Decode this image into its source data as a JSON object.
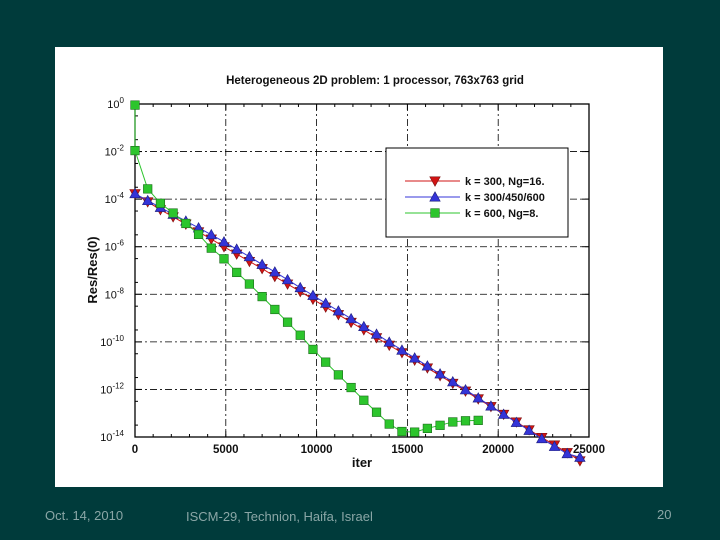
{
  "footer": {
    "date": "Oct. 14, 2010",
    "venue": "ISCM-29, Technion, Haifa, Israel",
    "page": "20"
  },
  "colors": {
    "background": "#003b3b",
    "figure": "#ffffff",
    "footer_text": "#8aa6a6"
  },
  "chart_data": {
    "type": "line",
    "title": "Heterogeneous 2D problem:  1 processor, 763x763 grid",
    "xlabel": "iter",
    "ylabel": "Res/Res(0)",
    "xlim": [
      0,
      25000
    ],
    "ylim_log10": [
      -14,
      0
    ],
    "yscale": "log",
    "grid": true,
    "legend_position": "top-right",
    "x_ticks": [
      "0",
      "5000",
      "10000",
      "15000",
      "20000",
      "25000"
    ],
    "y_ticks": [
      {
        "base": "10",
        "exp": "0"
      },
      {
        "base": "10",
        "exp": "-2"
      },
      {
        "base": "10",
        "exp": "-4"
      },
      {
        "base": "10",
        "exp": "-6"
      },
      {
        "base": "10",
        "exp": "-8"
      },
      {
        "base": "10",
        "exp": "-10"
      },
      {
        "base": "10",
        "exp": "-12"
      },
      {
        "base": "10",
        "exp": "-14"
      }
    ],
    "series": [
      {
        "name": "k = 300,  Ng=16.",
        "color": "#d21414",
        "marker": "triangle-down",
        "points": [
          [
            0,
            0.00017
          ],
          [
            700,
            7.7e-05
          ],
          [
            1400,
            3.6e-05
          ],
          [
            2100,
            1.8e-05
          ],
          [
            2800,
            8.9e-06
          ],
          [
            3500,
            4.2e-06
          ],
          [
            4200,
            2.1e-06
          ],
          [
            4900,
            9.9e-07
          ],
          [
            5600,
            4.9e-07
          ],
          [
            6300,
            2.4e-07
          ],
          [
            7000,
            1.2e-07
          ],
          [
            7700,
            5.6e-08
          ],
          [
            8400,
            2.7e-08
          ],
          [
            9100,
            1.3e-08
          ],
          [
            9800,
            6.2e-09
          ],
          [
            10500,
            2.9e-09
          ],
          [
            11200,
            1.4e-09
          ],
          [
            11900,
            6.6e-10
          ],
          [
            12600,
            3.2e-10
          ],
          [
            13300,
            1.5e-10
          ],
          [
            14000,
            7.2e-11
          ],
          [
            14700,
            3.5e-11
          ],
          [
            15400,
            1.7e-11
          ],
          [
            16100,
            8e-12
          ],
          [
            16800,
            3.8e-12
          ],
          [
            17500,
            1.8e-12
          ],
          [
            18200,
            8.5e-13
          ],
          [
            18900,
            4e-13
          ],
          [
            19600,
            1.9e-13
          ],
          [
            20300,
            9e-14
          ],
          [
            21000,
            4.3e-14
          ],
          [
            21700,
            2e-14
          ],
          [
            22400,
            9.6e-15
          ],
          [
            23100,
            4.6e-15
          ],
          [
            23800,
            2.2e-15
          ],
          [
            24500,
            1e-15
          ]
        ]
      },
      {
        "name": "k = 300/450/600",
        "color": "#3434d8",
        "marker": "triangle-up",
        "points": [
          [
            0,
            0.00017
          ],
          [
            700,
            8.7e-05
          ],
          [
            1400,
            4.5e-05
          ],
          [
            2100,
            2.3e-05
          ],
          [
            2800,
            1.2e-05
          ],
          [
            3500,
            6.2e-06
          ],
          [
            4200,
            3.2e-06
          ],
          [
            4900,
            1.6e-06
          ],
          [
            5600,
            7.9e-07
          ],
          [
            6300,
            3.8e-07
          ],
          [
            7000,
            1.8e-07
          ],
          [
            7700,
            8.7e-08
          ],
          [
            8400,
            4.1e-08
          ],
          [
            9100,
            1.9e-08
          ],
          [
            9800,
            9e-09
          ],
          [
            10500,
            4.2e-09
          ],
          [
            11200,
            2e-09
          ],
          [
            11900,
            9.4e-10
          ],
          [
            12600,
            4.4e-10
          ],
          [
            13300,
            2.1e-10
          ],
          [
            14000,
            9.7e-11
          ],
          [
            14700,
            4.5e-11
          ],
          [
            15400,
            2.1e-11
          ],
          [
            16100,
            9.7e-12
          ],
          [
            16800,
            4.5e-12
          ],
          [
            17500,
            2.1e-12
          ],
          [
            18200,
            9.6e-13
          ],
          [
            18900,
            4.4e-13
          ],
          [
            19600,
            2e-13
          ],
          [
            20300,
            9e-14
          ],
          [
            21000,
            4.1e-14
          ],
          [
            21700,
            1.9e-14
          ],
          [
            22400,
            8.5e-15
          ],
          [
            23100,
            4e-15
          ],
          [
            23800,
            2e-15
          ],
          [
            24500,
            1.4e-15
          ]
        ]
      },
      {
        "name": "k = 600,  Ng=8.",
        "color": "#2cc52c",
        "marker": "square",
        "points": [
          [
            0,
            0.9
          ],
          [
            0,
            0.011
          ],
          [
            700,
            0.00027
          ],
          [
            1400,
            6.7e-05
          ],
          [
            2100,
            2.6e-05
          ],
          [
            2800,
            9.5e-06
          ],
          [
            3500,
            3.3e-06
          ],
          [
            4200,
            8.7e-07
          ],
          [
            4900,
            3.1e-07
          ],
          [
            5600,
            8.3e-08
          ],
          [
            6300,
            2.7e-08
          ],
          [
            7000,
            8e-09
          ],
          [
            7700,
            2.3e-09
          ],
          [
            8400,
            6.7e-10
          ],
          [
            9100,
            1.9e-10
          ],
          [
            9800,
            4.8e-11
          ],
          [
            10500,
            1.4e-11
          ],
          [
            11200,
            4.1e-12
          ],
          [
            11900,
            1.2e-12
          ],
          [
            12600,
            3.5e-13
          ],
          [
            13300,
            1.1e-13
          ],
          [
            14000,
            3.5e-14
          ],
          [
            14700,
            1.7e-14
          ],
          [
            15400,
            1.6e-14
          ],
          [
            16100,
            2.3e-14
          ],
          [
            16800,
            3.1e-14
          ],
          [
            17500,
            4.3e-14
          ],
          [
            18200,
            4.8e-14
          ],
          [
            18900,
            5e-14
          ]
        ]
      }
    ]
  }
}
